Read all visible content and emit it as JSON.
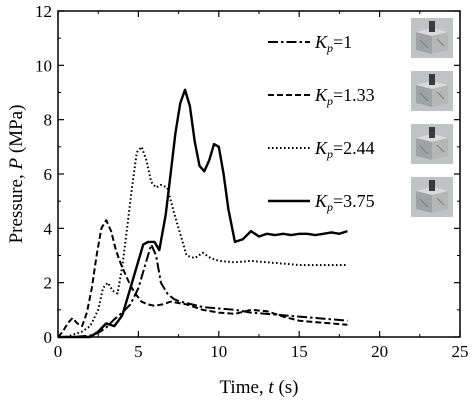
{
  "chart_data": {
    "type": "line",
    "xlabel": "Time, t (s)",
    "xlabel_parts": {
      "prefix": "Time, ",
      "var": "t",
      "suffix": " (s)"
    },
    "ylabel": "Pressure, P (MPa)",
    "ylabel_parts": {
      "prefix": "Pressure, ",
      "var": "P",
      "suffix": " (MPa)"
    },
    "xlim": [
      0,
      25
    ],
    "ylim": [
      0,
      12
    ],
    "xticks": [
      0,
      5,
      10,
      15,
      20,
      25
    ],
    "yticks": [
      0,
      2,
      4,
      6,
      8,
      10,
      12
    ],
    "grid": false,
    "legend_position": "top-right",
    "series": [
      {
        "name": "Kp=1",
        "label_var": "K",
        "label_sub": "p",
        "label_val": "=1",
        "style": "dash-dot",
        "x": [
          0.0,
          1.0,
          2.0,
          2.5,
          3.0,
          3.5,
          4.0,
          4.5,
          5.0,
          5.5,
          5.8,
          6.1,
          6.4,
          6.8,
          7.2,
          7.6,
          8.0,
          9.0,
          10.0,
          11.0,
          12.0,
          13.0,
          14.0,
          15.0,
          16.0,
          17.0,
          18.0
        ],
        "y": [
          0.0,
          0.0,
          0.05,
          0.15,
          0.35,
          0.65,
          0.9,
          1.2,
          1.8,
          2.8,
          3.4,
          3.0,
          2.0,
          1.6,
          1.4,
          1.3,
          1.25,
          1.1,
          1.05,
          1.0,
          0.9,
          0.85,
          0.8,
          0.75,
          0.7,
          0.65,
          0.6
        ]
      },
      {
        "name": "Kp=1.33",
        "label_var": "K",
        "label_sub": "p",
        "label_val": "=1.33",
        "style": "dashed",
        "x": [
          0.0,
          0.3,
          0.6,
          0.9,
          1.2,
          1.5,
          1.8,
          2.1,
          2.4,
          2.7,
          3.0,
          3.3,
          3.6,
          3.9,
          4.2,
          4.5,
          4.8,
          5.2,
          5.6,
          6.0,
          6.5,
          7.0,
          8.0,
          9.0,
          10.0,
          11.0,
          12.0,
          13.0,
          14.0,
          15.0,
          16.0,
          17.0,
          18.0
        ],
        "y": [
          0.0,
          0.2,
          0.5,
          0.7,
          0.5,
          0.4,
          0.9,
          1.8,
          3.0,
          4.0,
          4.3,
          3.9,
          3.2,
          2.7,
          2.3,
          1.9,
          1.6,
          1.3,
          1.2,
          1.15,
          1.2,
          1.3,
          1.2,
          1.0,
          0.9,
          0.85,
          1.0,
          0.95,
          0.75,
          0.6,
          0.55,
          0.5,
          0.45
        ]
      },
      {
        "name": "Kp=2.44",
        "label_var": "K",
        "label_sub": "p",
        "label_val": "=2.44",
        "style": "dotted",
        "x": [
          0.0,
          0.5,
          1.0,
          1.5,
          2.0,
          2.5,
          2.8,
          3.1,
          3.4,
          3.7,
          4.0,
          4.3,
          4.6,
          4.9,
          5.2,
          5.5,
          5.8,
          6.1,
          6.4,
          6.8,
          7.2,
          7.6,
          8.0,
          8.5,
          9.0,
          9.5,
          10.0,
          11.0,
          12.0,
          13.0,
          14.0,
          15.0,
          16.0,
          17.0,
          18.0
        ],
        "y": [
          0.0,
          0.0,
          0.1,
          0.2,
          0.4,
          1.0,
          1.8,
          2.0,
          1.7,
          1.6,
          2.6,
          4.0,
          5.5,
          6.8,
          7.0,
          6.5,
          5.7,
          5.5,
          5.6,
          5.5,
          4.6,
          3.8,
          3.0,
          2.9,
          3.1,
          2.9,
          2.8,
          2.75,
          2.8,
          2.75,
          2.7,
          2.65,
          2.65,
          2.65,
          2.65
        ]
      },
      {
        "name": "Kp=3.75",
        "label_var": "K",
        "label_sub": "p",
        "label_val": "=3.75",
        "style": "solid",
        "x": [
          0.0,
          2.0,
          2.5,
          3.0,
          3.5,
          4.0,
          4.5,
          5.0,
          5.3,
          5.6,
          6.0,
          6.3,
          6.7,
          7.0,
          7.3,
          7.6,
          7.9,
          8.2,
          8.5,
          8.8,
          9.1,
          9.4,
          9.7,
          10.0,
          10.3,
          10.6,
          11.0,
          11.5,
          12.0,
          12.5,
          13.0,
          13.5,
          14.0,
          14.5,
          15.0,
          15.5,
          16.0,
          16.5,
          17.0,
          17.5,
          18.0
        ],
        "y": [
          0.0,
          0.0,
          0.2,
          0.5,
          0.4,
          0.8,
          1.8,
          2.8,
          3.4,
          3.5,
          3.5,
          3.2,
          4.5,
          6.0,
          7.5,
          8.6,
          9.1,
          8.5,
          7.2,
          6.3,
          6.1,
          6.5,
          7.1,
          7.0,
          6.0,
          4.7,
          3.5,
          3.6,
          3.9,
          3.7,
          3.8,
          3.75,
          3.8,
          3.75,
          3.8,
          3.8,
          3.75,
          3.8,
          3.85,
          3.8,
          3.9
        ]
      }
    ]
  }
}
